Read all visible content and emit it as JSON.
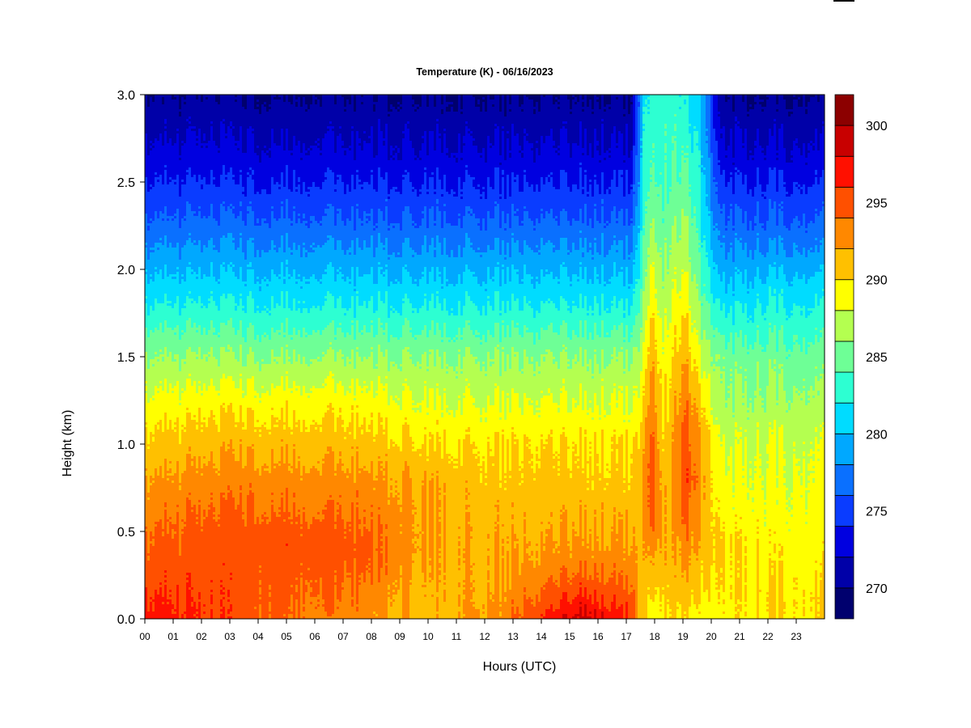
{
  "chart_data": {
    "type": "heatmap",
    "title": "Temperature (K) - 06/16/2023",
    "xlabel": "Hours (UTC)",
    "ylabel": "Height (km)",
    "xlim": [
      0,
      24
    ],
    "ylim": [
      0.0,
      3.0
    ],
    "x_ticks": [
      "00",
      "01",
      "02",
      "03",
      "04",
      "05",
      "06",
      "07",
      "08",
      "09",
      "10",
      "11",
      "12",
      "13",
      "14",
      "15",
      "16",
      "17",
      "18",
      "19",
      "20",
      "21",
      "22",
      "23"
    ],
    "y_ticks": [
      "0.0",
      "0.5",
      "1.0",
      "1.5",
      "2.0",
      "2.5",
      "3.0"
    ],
    "colorbar": {
      "min": 268,
      "max": 302,
      "step": 2,
      "tick_labels": [
        "270",
        "275",
        "280",
        "285",
        "290",
        "295",
        "300"
      ],
      "colors": [
        "#00006e",
        "#0000a8",
        "#0000e0",
        "#0a3cff",
        "#0a70ff",
        "#00a8ff",
        "#00dcff",
        "#2dffd2",
        "#6eff96",
        "#b4ff50",
        "#ffff00",
        "#ffc000",
        "#ff8800",
        "#ff5000",
        "#ff1000",
        "#c80000",
        "#8c0000"
      ]
    },
    "profiles": [
      {
        "hour": 0.0,
        "values": [
          [
            0.0,
            297
          ],
          [
            0.3,
            295
          ],
          [
            0.65,
            293
          ],
          [
            0.95,
            291
          ],
          [
            1.2,
            289
          ],
          [
            1.5,
            286
          ],
          [
            1.8,
            282
          ],
          [
            2.05,
            279
          ],
          [
            2.3,
            276
          ],
          [
            2.6,
            273
          ],
          [
            3.0,
            270
          ]
        ]
      },
      {
        "hour": 3.5,
        "values": [
          [
            0.0,
            295
          ],
          [
            0.5,
            295
          ],
          [
            0.8,
            293
          ],
          [
            1.05,
            291
          ],
          [
            1.25,
            289
          ],
          [
            1.5,
            286
          ],
          [
            1.8,
            282
          ],
          [
            2.05,
            279
          ],
          [
            2.3,
            276
          ],
          [
            2.6,
            273
          ],
          [
            3.0,
            270
          ]
        ]
      },
      {
        "hour": 7.5,
        "values": [
          [
            0.0,
            293
          ],
          [
            0.4,
            295
          ],
          [
            0.75,
            293
          ],
          [
            1.0,
            291
          ],
          [
            1.25,
            289
          ],
          [
            1.5,
            286
          ],
          [
            1.8,
            282
          ],
          [
            2.05,
            279
          ],
          [
            2.3,
            276
          ],
          [
            2.6,
            273
          ],
          [
            3.0,
            270
          ]
        ]
      },
      {
        "hour": 10.0,
        "values": [
          [
            0.0,
            291
          ],
          [
            0.4,
            292
          ],
          [
            0.75,
            292
          ],
          [
            1.0,
            290
          ],
          [
            1.25,
            288
          ],
          [
            1.5,
            286
          ],
          [
            1.8,
            282
          ],
          [
            2.05,
            279
          ],
          [
            2.3,
            276
          ],
          [
            2.6,
            273
          ],
          [
            3.0,
            270
          ]
        ]
      },
      {
        "hour": 12.5,
        "values": [
          [
            0.0,
            293
          ],
          [
            0.2,
            292
          ],
          [
            0.7,
            291
          ],
          [
            1.0,
            290
          ],
          [
            1.25,
            288
          ],
          [
            1.5,
            286
          ],
          [
            1.8,
            282
          ],
          [
            2.05,
            279
          ],
          [
            2.3,
            276
          ],
          [
            2.6,
            273
          ],
          [
            3.0,
            270
          ]
        ]
      },
      {
        "hour": 15.5,
        "values": [
          [
            0.0,
            299
          ],
          [
            0.15,
            296
          ],
          [
            0.35,
            293
          ],
          [
            0.7,
            291
          ],
          [
            1.0,
            290
          ],
          [
            1.25,
            288
          ],
          [
            1.5,
            286
          ],
          [
            1.8,
            282
          ],
          [
            2.05,
            279
          ],
          [
            2.3,
            276
          ],
          [
            2.6,
            273
          ],
          [
            3.0,
            270
          ]
        ]
      },
      {
        "hour": 17.2,
        "values": [
          [
            0.0,
            296
          ],
          [
            0.3,
            293
          ],
          [
            0.7,
            291
          ],
          [
            1.0,
            290
          ],
          [
            1.25,
            288
          ],
          [
            1.5,
            286
          ],
          [
            1.8,
            282
          ],
          [
            2.05,
            279
          ],
          [
            2.3,
            276
          ],
          [
            2.6,
            273
          ],
          [
            3.0,
            270
          ]
        ]
      },
      {
        "hour": 17.6,
        "values": [
          [
            0.0,
            290
          ],
          [
            0.3,
            291
          ],
          [
            0.8,
            292
          ],
          [
            1.2,
            290
          ],
          [
            1.6,
            287
          ],
          [
            2.0,
            284
          ],
          [
            2.5,
            282
          ],
          [
            3.0,
            281
          ]
        ]
      },
      {
        "hour": 17.9,
        "values": [
          [
            0.0,
            289
          ],
          [
            0.3,
            292
          ],
          [
            0.6,
            296
          ],
          [
            0.9,
            296
          ],
          [
            1.4,
            293
          ],
          [
            2.0,
            289
          ],
          [
            2.5,
            285
          ],
          [
            3.0,
            283
          ]
        ]
      },
      {
        "hour": 18.3,
        "values": [
          [
            0.0,
            290
          ],
          [
            0.4,
            292
          ],
          [
            0.9,
            291
          ],
          [
            1.5,
            289
          ],
          [
            2.0,
            286
          ],
          [
            2.5,
            284
          ],
          [
            3.0,
            283
          ]
        ]
      },
      {
        "hour": 18.6,
        "values": [
          [
            0.0,
            290
          ],
          [
            0.3,
            291
          ],
          [
            0.7,
            292
          ],
          [
            1.2,
            291
          ],
          [
            1.8,
            288
          ],
          [
            2.5,
            284
          ],
          [
            3.0,
            283
          ]
        ]
      },
      {
        "hour": 19.1,
        "values": [
          [
            0.0,
            290
          ],
          [
            0.35,
            293
          ],
          [
            0.8,
            296
          ],
          [
            1.1,
            295
          ],
          [
            1.5,
            292
          ],
          [
            2.0,
            288
          ],
          [
            2.5,
            285
          ],
          [
            3.0,
            282
          ]
        ]
      },
      {
        "hour": 19.6,
        "values": [
          [
            0.0,
            289
          ],
          [
            0.3,
            291
          ],
          [
            0.8,
            293
          ],
          [
            1.2,
            291
          ],
          [
            1.7,
            286
          ],
          [
            2.2,
            283
          ],
          [
            2.8,
            281
          ],
          [
            3.0,
            281
          ]
        ]
      },
      {
        "hour": 20.3,
        "values": [
          [
            0.0,
            289
          ],
          [
            0.4,
            290
          ],
          [
            0.9,
            288
          ],
          [
            1.5,
            285
          ],
          [
            1.9,
            280
          ],
          [
            2.3,
            276
          ],
          [
            2.6,
            273
          ],
          [
            3.0,
            270
          ]
        ]
      },
      {
        "hour": 22.0,
        "values": [
          [
            0.0,
            290
          ],
          [
            0.15,
            290
          ],
          [
            0.5,
            289
          ],
          [
            1.0,
            288
          ],
          [
            1.5,
            285
          ],
          [
            1.9,
            281
          ],
          [
            2.2,
            277
          ],
          [
            2.6,
            273
          ],
          [
            3.0,
            270
          ]
        ]
      },
      {
        "hour": 24.0,
        "values": [
          [
            0.0,
            290
          ],
          [
            0.15,
            290
          ],
          [
            0.5,
            289
          ],
          [
            1.0,
            288
          ],
          [
            1.5,
            285
          ],
          [
            1.9,
            281
          ],
          [
            2.2,
            277
          ],
          [
            2.6,
            273
          ],
          [
            3.0,
            270
          ]
        ]
      }
    ]
  }
}
